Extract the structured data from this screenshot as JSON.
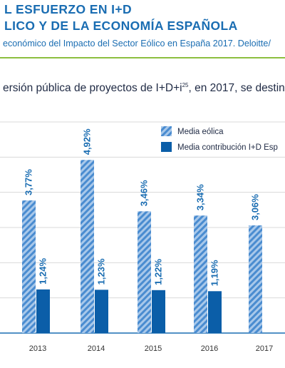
{
  "header": {
    "title_line1": "L ESFUERZO EN I+D",
    "title_line2": "LICO Y DE LA ECONOMÍA ESPAÑOLA",
    "source": "económico del Impacto del Sector Eólico en España 2017. Deloitte/"
  },
  "intro": {
    "text": "ersión pública de proyectos de I+D+i",
    "superscript": "25",
    "text_after": ", en 2017, se destin"
  },
  "chart_data": {
    "type": "bar",
    "categories": [
      "2013",
      "2014",
      "2015",
      "2016",
      "2017"
    ],
    "series": [
      {
        "name": "Media eólica",
        "values": [
          3.77,
          4.92,
          3.46,
          3.34,
          3.06
        ],
        "labels": [
          "3,77%",
          "4,92%",
          "3,46%",
          "3,34%",
          "3,06%"
        ],
        "color": "#1a6db2",
        "pattern": "hatched"
      },
      {
        "name": "Media contribución I+D Esp",
        "values": [
          1.24,
          1.23,
          1.22,
          1.19,
          null
        ],
        "labels": [
          "1,24%",
          "1,23%",
          "1,22%",
          "1,19%",
          ""
        ],
        "color": "#0b5ea8",
        "pattern": "solid"
      }
    ],
    "ylim": [
      0,
      6
    ],
    "grid": true,
    "legend": "top-right"
  }
}
